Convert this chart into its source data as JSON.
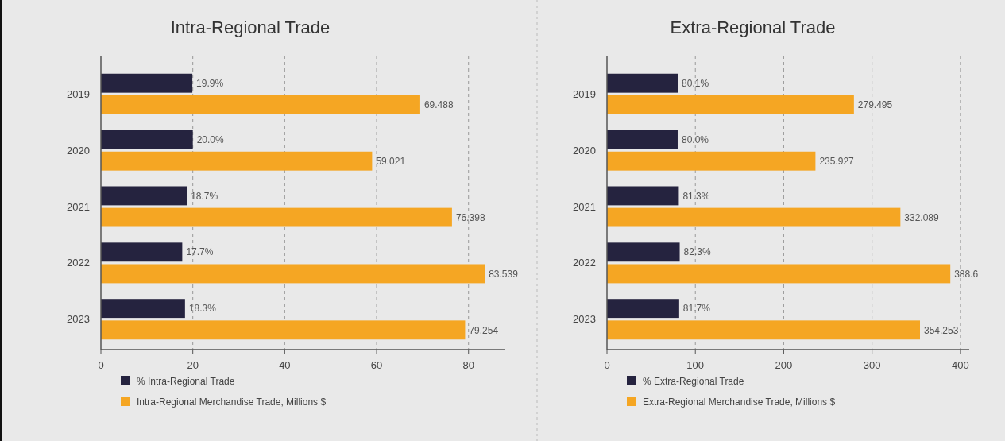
{
  "chart_data": [
    {
      "type": "bar",
      "orientation": "horizontal",
      "title": "Intra-Regional Trade",
      "categories": [
        "2019",
        "2020",
        "2021",
        "2022",
        "2023"
      ],
      "xlim": [
        0,
        88
      ],
      "xticks": [
        0,
        20,
        40,
        60,
        80
      ],
      "grid": "x",
      "legend": "bottom",
      "series": [
        {
          "name": "% Intra-Regional Trade",
          "color": "#25233f",
          "values": [
            19.9,
            20.0,
            18.7,
            17.7,
            18.3
          ],
          "value_labels": [
            "19.9%",
            "20.0%",
            "18.7%",
            "17.7%",
            "18.3%"
          ]
        },
        {
          "name": "Intra-Regional Merchandise Trade, Millions $",
          "color": "#f5a623",
          "values": [
            69.488,
            59.021,
            76.398,
            83.539,
            79.254
          ],
          "value_labels": [
            "69.488",
            "59.021",
            "76.398",
            "83.539",
            "79.254"
          ]
        }
      ]
    },
    {
      "type": "bar",
      "orientation": "horizontal",
      "title": "Extra-Regional Trade",
      "categories": [
        "2019",
        "2020",
        "2021",
        "2022",
        "2023"
      ],
      "xlim": [
        0,
        410
      ],
      "xticks": [
        0,
        100,
        200,
        300,
        400
      ],
      "grid": "x",
      "legend": "bottom",
      "series": [
        {
          "name": "% Extra-Regional Trade",
          "color": "#25233f",
          "values": [
            80.1,
            80.0,
            81.3,
            82.3,
            81.7
          ],
          "value_labels": [
            "80.1%",
            "80.0%",
            "81.3%",
            "82.3%",
            "81.7%"
          ]
        },
        {
          "name": "Extra-Regional Merchandise Trade, Millions $",
          "color": "#f5a623",
          "values": [
            279.495,
            235.927,
            332.089,
            388.6,
            354.253
          ],
          "value_labels": [
            "279.495",
            "235.927",
            "332.089",
            "388.6",
            "354.253"
          ]
        }
      ]
    }
  ]
}
